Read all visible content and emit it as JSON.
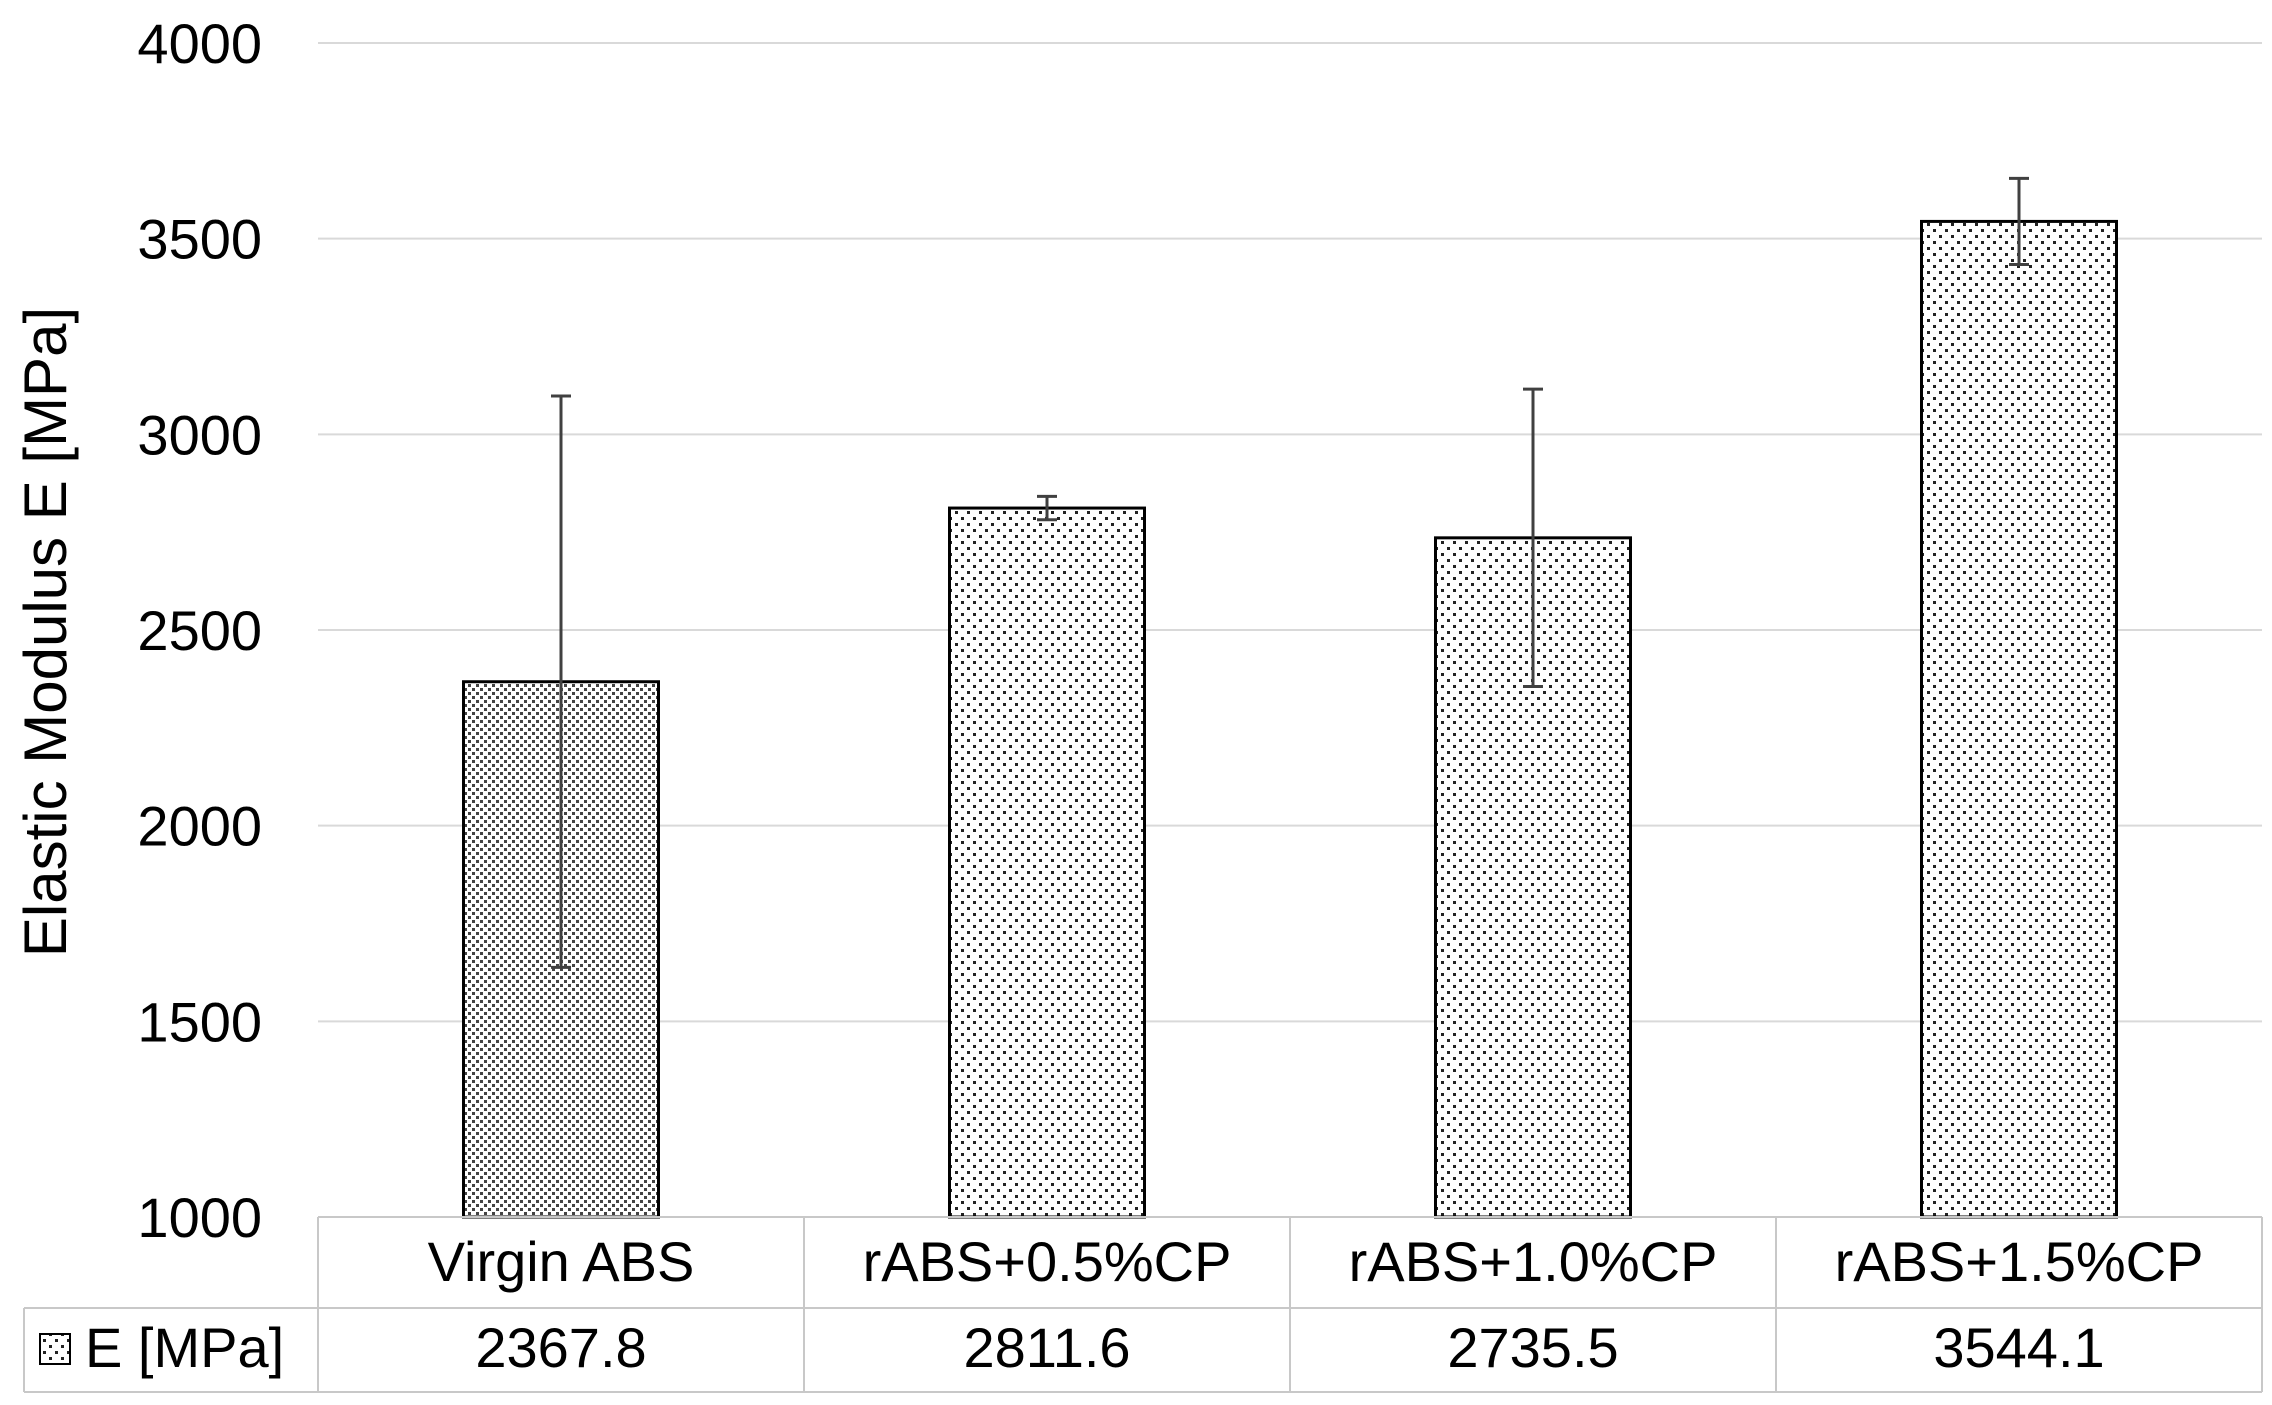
{
  "chart_data": {
    "type": "bar",
    "title": "",
    "xlabel": "",
    "ylabel": "Elastic Modulus  E [MPa]",
    "ylim": [
      1000,
      4000
    ],
    "yticks": [
      1000,
      1500,
      2000,
      2500,
      3000,
      3500,
      4000
    ],
    "grid": true,
    "categories": [
      "Virgin ABS",
      "rABS+0.5%CP",
      "rABS+1.0%CP",
      "rABS+1.5%CP"
    ],
    "series": [
      {
        "name": "E [MPa]",
        "values": [
          2367.8,
          2811.6,
          2735.5,
          3544.1
        ],
        "error_low": [
          730,
          30,
          380,
          110
        ],
        "error_high": [
          730,
          30,
          380,
          110
        ]
      }
    ],
    "data_table": {
      "row_label": "E [MPa]",
      "cells": [
        "2367.8",
        "2811.6",
        "2735.5",
        "3544.1"
      ]
    },
    "colors": {
      "grid": "#d9d9d9",
      "bar_stroke": "#000000",
      "bar_fill": "#ffffff",
      "pattern_dot": "#000000",
      "error_bar": "#404040",
      "table_border": "#c8c8c8"
    }
  }
}
